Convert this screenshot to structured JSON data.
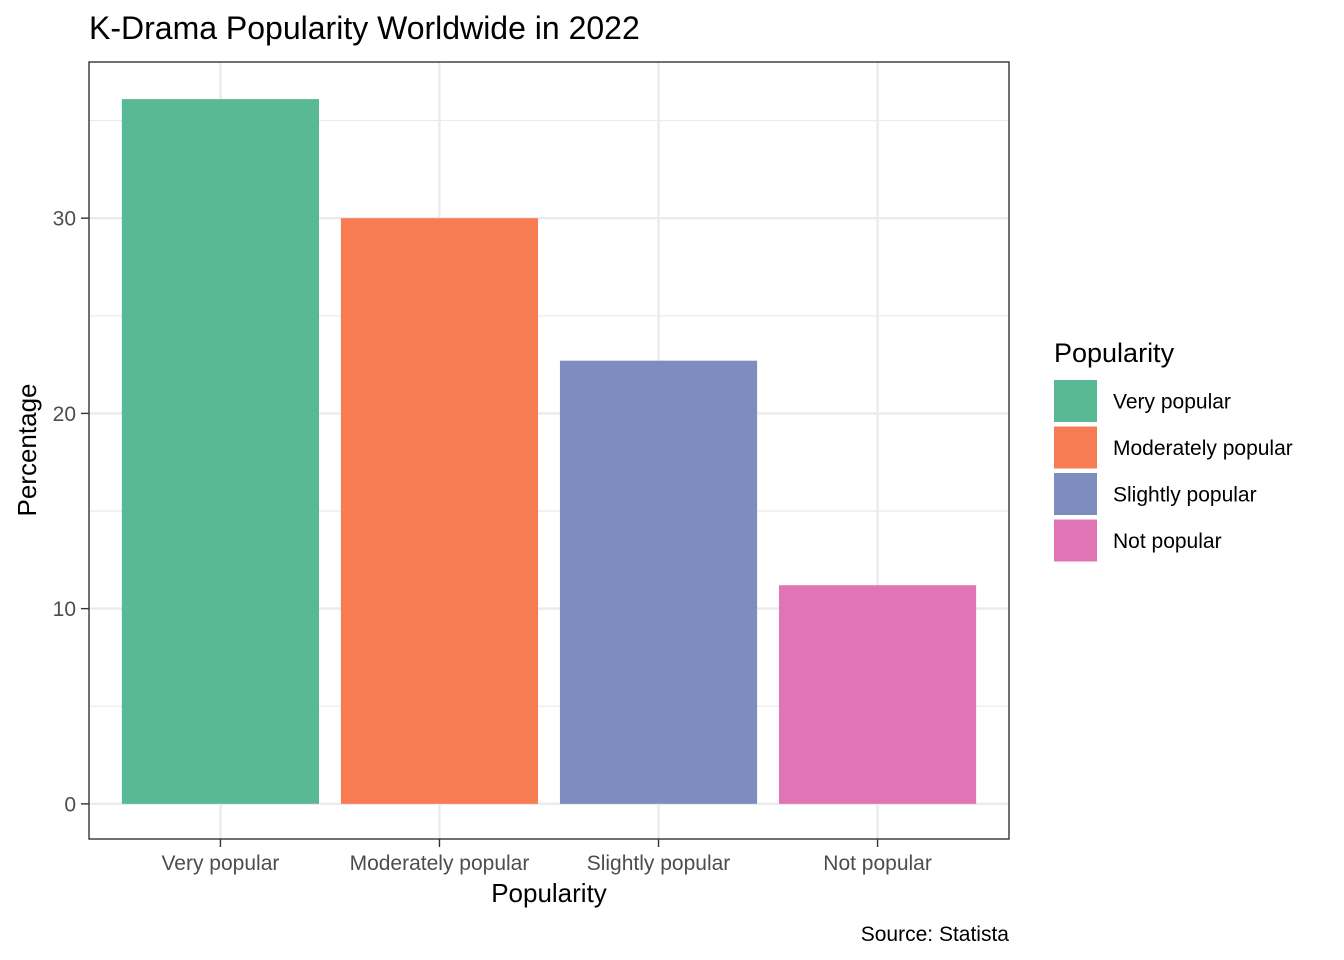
{
  "chart_data": {
    "type": "bar",
    "title": "K-Drama Popularity Worldwide in 2022",
    "xlabel": "Popularity",
    "ylabel": "Percentage",
    "categories": [
      "Very popular",
      "Moderately popular",
      "Slightly popular",
      "Not popular"
    ],
    "values": [
      36.1,
      30.0,
      22.7,
      11.2
    ],
    "colors": [
      "#59b994",
      "#f87c53",
      "#7d8ebe",
      "#e075b6"
    ],
    "ylim": [
      -1.8,
      38.0
    ],
    "yticks": [
      0,
      10,
      20,
      30
    ],
    "yticks_labels": [
      "0",
      "10",
      "20",
      "30"
    ],
    "grid": true,
    "legend": {
      "title": "Popularity",
      "position": "right",
      "entries": [
        "Very popular",
        "Moderately popular",
        "Slightly popular",
        "Not popular"
      ]
    },
    "caption": "Source: Statista"
  }
}
